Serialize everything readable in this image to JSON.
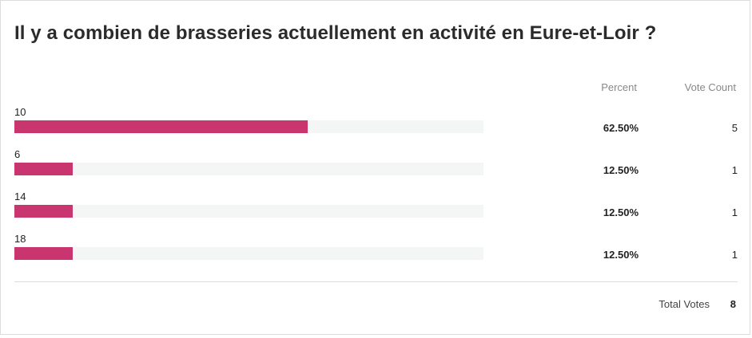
{
  "poll": {
    "title": "Il y a combien de brasseries actuellement en activité en Eure-et-Loir ?",
    "headers": {
      "percent": "Percent",
      "votes": "Vote Count"
    },
    "bar_color": "#c9366f",
    "track_color": "#f4f5f5",
    "options": [
      {
        "label": "10",
        "percent": "62.50%",
        "fraction": 0.625,
        "votes": "5"
      },
      {
        "label": "6",
        "percent": "12.50%",
        "fraction": 0.125,
        "votes": "1"
      },
      {
        "label": "14",
        "percent": "12.50%",
        "fraction": 0.125,
        "votes": "1"
      },
      {
        "label": "18",
        "percent": "12.50%",
        "fraction": 0.125,
        "votes": "1"
      }
    ],
    "total": {
      "label": "Total Votes",
      "value": "8"
    }
  }
}
